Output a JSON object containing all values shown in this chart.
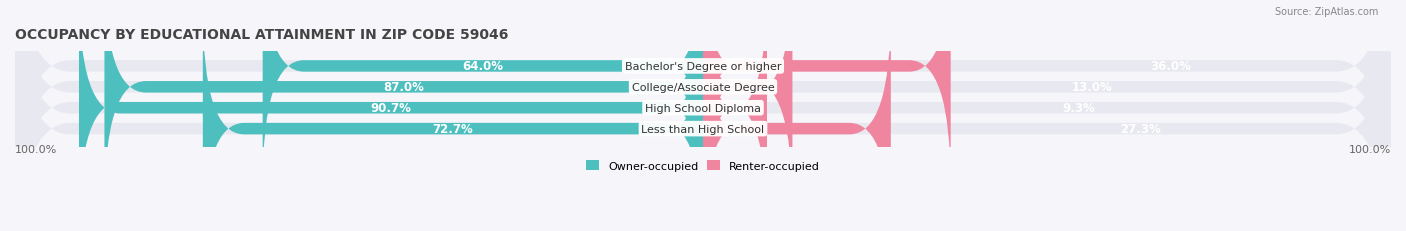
{
  "title": "OCCUPANCY BY EDUCATIONAL ATTAINMENT IN ZIP CODE 59046",
  "source": "Source: ZipAtlas.com",
  "categories": [
    "Less than High School",
    "High School Diploma",
    "College/Associate Degree",
    "Bachelor's Degree or higher"
  ],
  "owner_pct": [
    72.7,
    90.7,
    87.0,
    64.0
  ],
  "renter_pct": [
    27.3,
    9.3,
    13.0,
    36.0
  ],
  "owner_color": "#4DBFBF",
  "renter_color": "#F085A0",
  "bar_bg_color": "#E8E8F0",
  "background_color": "#F5F5FA",
  "title_fontsize": 10,
  "label_fontsize": 8,
  "bar_height": 0.55,
  "figsize": [
    14.06,
    2.32
  ]
}
